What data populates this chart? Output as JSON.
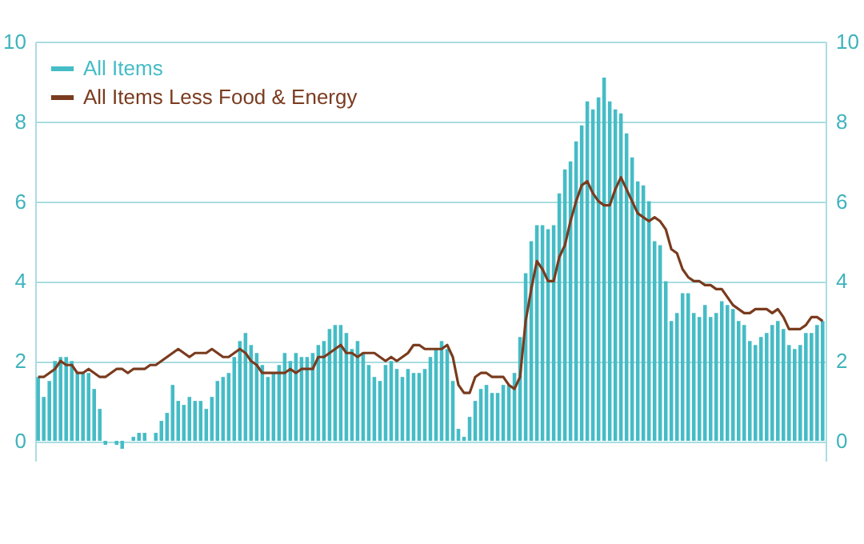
{
  "chart_data": {
    "type": "bar",
    "categories": [
      null,
      null,
      null,
      null,
      null,
      null,
      null,
      null,
      null,
      null,
      null,
      null,
      null,
      null,
      null,
      null,
      null,
      null,
      null,
      null,
      null,
      null,
      null,
      null,
      null,
      null,
      null,
      null,
      null,
      null,
      null,
      null,
      null,
      null,
      null,
      null,
      null,
      null,
      null,
      null,
      null,
      null,
      null,
      null,
      null,
      null,
      null,
      null,
      null,
      null,
      null,
      null,
      null,
      null,
      null,
      null,
      null,
      null,
      null,
      null,
      null,
      null,
      null,
      null,
      null,
      null,
      null,
      null,
      null,
      null,
      null,
      null,
      null,
      null,
      null,
      null,
      null,
      null,
      null,
      null,
      null,
      null,
      null,
      null,
      null,
      null,
      null,
      null,
      null,
      null,
      null,
      null,
      null,
      null,
      null,
      null,
      null,
      null,
      null,
      null,
      null,
      null,
      null,
      null,
      null,
      null,
      null,
      null,
      null,
      null,
      null,
      null,
      null,
      null,
      null,
      null,
      null,
      null,
      null,
      null,
      null,
      null,
      null,
      null,
      null,
      null,
      null,
      null,
      null,
      null,
      null,
      null,
      null,
      null,
      null,
      null,
      null,
      null,
      null,
      null,
      null
    ],
    "series": [
      {
        "name": "All Items",
        "color": "#45bcc6",
        "values": [
          1.6,
          1.1,
          1.5,
          2.0,
          2.1,
          2.1,
          2.0,
          1.7,
          1.7,
          1.7,
          1.3,
          0.8,
          -0.1,
          0.0,
          -0.1,
          -0.2,
          0.0,
          0.1,
          0.2,
          0.2,
          0.0,
          0.2,
          0.5,
          0.7,
          1.4,
          1.0,
          0.9,
          1.1,
          1.0,
          1.0,
          0.8,
          1.1,
          1.5,
          1.6,
          1.7,
          2.1,
          2.5,
          2.7,
          2.4,
          2.2,
          1.9,
          1.6,
          1.7,
          1.9,
          2.2,
          2.0,
          2.2,
          2.1,
          2.1,
          2.2,
          2.4,
          2.5,
          2.8,
          2.9,
          2.9,
          2.7,
          2.3,
          2.5,
          2.2,
          1.9,
          1.6,
          1.5,
          1.9,
          2.0,
          1.8,
          1.6,
          1.8,
          1.7,
          1.7,
          1.8,
          2.1,
          2.3,
          2.5,
          2.3,
          1.5,
          0.3,
          0.1,
          0.6,
          1.0,
          1.3,
          1.4,
          1.2,
          1.2,
          1.4,
          1.4,
          1.7,
          2.6,
          4.2,
          5.0,
          5.4,
          5.4,
          5.3,
          5.4,
          6.2,
          6.8,
          7.0,
          7.5,
          7.9,
          8.5,
          8.3,
          8.6,
          9.1,
          8.5,
          8.3,
          8.2,
          7.7,
          7.1,
          6.5,
          6.4,
          6.0,
          5.0,
          4.9,
          4.0,
          3.0,
          3.2,
          3.7,
          3.7,
          3.2,
          3.1,
          3.4,
          3.1,
          3.2,
          3.5,
          3.4,
          3.3,
          3.0,
          2.9,
          2.5,
          2.4,
          2.6,
          2.7,
          2.9,
          3.0,
          2.8,
          2.4,
          2.3,
          2.4,
          2.7,
          2.7,
          2.9,
          3.0
        ]
      },
      {
        "name": "All Items Less Food & Energy",
        "type": "line",
        "axis": "y2",
        "color": "#7a3b1e",
        "values": [
          1.6,
          1.6,
          1.7,
          1.8,
          2.0,
          1.9,
          1.9,
          1.7,
          1.7,
          1.8,
          1.7,
          1.6,
          1.6,
          1.7,
          1.8,
          1.8,
          1.7,
          1.8,
          1.8,
          1.8,
          1.9,
          1.9,
          2.0,
          2.1,
          2.2,
          2.3,
          2.2,
          2.1,
          2.2,
          2.2,
          2.2,
          2.3,
          2.2,
          2.1,
          2.1,
          2.2,
          2.3,
          2.2,
          2.0,
          1.9,
          1.7,
          1.7,
          1.7,
          1.7,
          1.7,
          1.8,
          1.7,
          1.8,
          1.8,
          1.8,
          2.1,
          2.1,
          2.2,
          2.3,
          2.4,
          2.2,
          2.2,
          2.1,
          2.2,
          2.2,
          2.2,
          2.1,
          2.0,
          2.1,
          2.0,
          2.1,
          2.2,
          2.4,
          2.4,
          2.3,
          2.3,
          2.3,
          2.3,
          2.4,
          2.1,
          1.4,
          1.2,
          1.2,
          1.6,
          1.7,
          1.7,
          1.6,
          1.6,
          1.6,
          1.4,
          1.3,
          1.6,
          3.0,
          3.8,
          4.5,
          4.3,
          4.0,
          4.0,
          4.6,
          4.9,
          5.5,
          6.0,
          6.4,
          6.5,
          6.2,
          6.0,
          5.9,
          5.9,
          6.3,
          6.6,
          6.3,
          6.0,
          5.7,
          5.6,
          5.5,
          5.6,
          5.5,
          5.3,
          4.8,
          4.7,
          4.3,
          4.1,
          4.0,
          4.0,
          3.9,
          3.9,
          3.8,
          3.8,
          3.6,
          3.4,
          3.3,
          3.2,
          3.2,
          3.3,
          3.3,
          3.3,
          3.2,
          3.3,
          3.1,
          2.8,
          2.8,
          2.8,
          2.9,
          3.1,
          3.1,
          3.0
        ]
      }
    ],
    "ylim": [
      -0.5,
      10
    ],
    "yticks": [
      0,
      2,
      4,
      6,
      8,
      10
    ],
    "y2lim": [
      -0.5,
      10
    ],
    "y2ticks": [
      0,
      2,
      4,
      6,
      8,
      10
    ],
    "tick_labels": "y",
    "grid": "y",
    "legend": "top left",
    "line_style": "solid"
  }
}
